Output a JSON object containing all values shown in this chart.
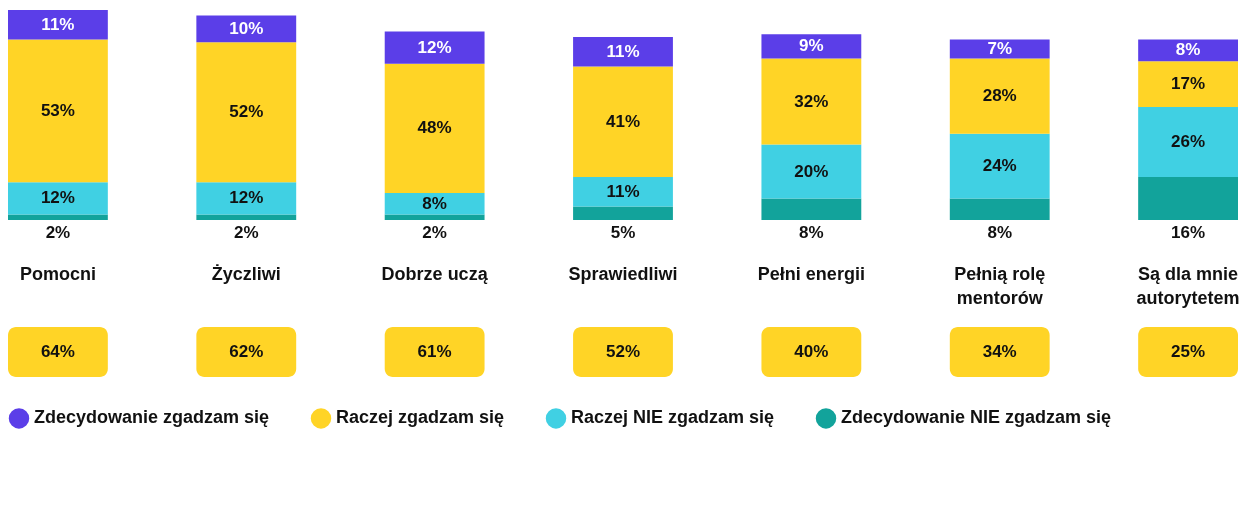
{
  "chart_data": {
    "type": "bar",
    "stacked": true,
    "legend": "bottom",
    "categories": [
      "Pomocni",
      "Życzliwi",
      "Dobrze uczą",
      "Sprawiedliwi",
      "Pełni energii",
      "Pełnią rolę mentorów",
      "Są dla mnie autorytetem"
    ],
    "series": [
      {
        "name": "Zdecydowanie NIE zgadzam się",
        "color": "#12a39b",
        "values": [
          2,
          2,
          2,
          5,
          8,
          8,
          16
        ],
        "value_labels": [
          "2%",
          "2%",
          "2%",
          "5%",
          "8%",
          "8%",
          "16%"
        ]
      },
      {
        "name": "Raczej NIE zgadzam się",
        "color": "#40d0e3",
        "values": [
          12,
          12,
          8,
          11,
          20,
          24,
          26
        ],
        "value_labels": [
          "12%",
          "12%",
          "8%",
          "11%",
          "20%",
          "24%",
          "26%"
        ]
      },
      {
        "name": "Raczej zgadzam się",
        "color": "#ffd426",
        "values": [
          53,
          52,
          48,
          41,
          32,
          28,
          17
        ],
        "value_labels": [
          "53%",
          "52%",
          "48%",
          "41%",
          "32%",
          "28%",
          "17%"
        ]
      },
      {
        "name": "Zdecydowanie zgadzam się",
        "color": "#5b3ee8",
        "values": [
          11,
          10,
          12,
          11,
          9,
          7,
          8
        ],
        "value_labels": [
          "11%",
          "10%",
          "12%",
          "11%",
          "9%",
          "7%",
          "8%"
        ]
      }
    ],
    "annotations": [
      "64%",
      "62%",
      "61%",
      "52%",
      "40%",
      "34%",
      "25%"
    ]
  }
}
